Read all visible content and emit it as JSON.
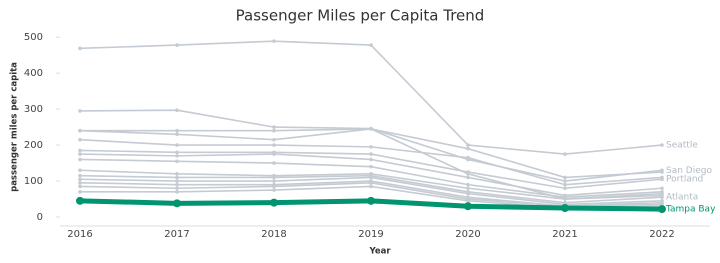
{
  "chart_data": {
    "type": "line",
    "title": "Passenger Miles per Capita Trend",
    "x_label": "Year",
    "y_label": "passenger miles per capita",
    "categories": [
      "2016",
      "2017",
      "2018",
      "2019",
      "2020",
      "2021",
      "2022"
    ],
    "ylim": [
      -25,
      520
    ],
    "yticks": [
      0,
      100,
      200,
      300,
      400,
      500
    ],
    "grid": false,
    "series": [
      {
        "name": "Seattle",
        "color": "#c5cbd3",
        "values": [
          469,
          478,
          489,
          478,
          200,
          175,
          200
        ]
      },
      {
        "name": "San Diego",
        "color": "#c5cbd3",
        "values": [
          295,
          297,
          250,
          246,
          160,
          100,
          130
        ]
      },
      {
        "color": "#c5cbd3",
        "values": [
          240,
          240,
          240,
          245,
          120,
          50,
          60
        ]
      },
      {
        "color": "#c5cbd3",
        "values": [
          240,
          230,
          215,
          245,
          190,
          110,
          125
        ]
      },
      {
        "color": "#c5cbd3",
        "values": [
          215,
          200,
          200,
          195,
          165,
          90,
          110
        ]
      },
      {
        "name": "Portland",
        "color": "#c5cbd3",
        "values": [
          185,
          180,
          180,
          175,
          125,
          80,
          105
        ]
      },
      {
        "color": "#c5cbd3",
        "values": [
          175,
          170,
          175,
          160,
          110,
          60,
          80
        ]
      },
      {
        "color": "#c5cbd3",
        "values": [
          160,
          155,
          150,
          140,
          90,
          55,
          70
        ]
      },
      {
        "color": "#c5cbd3",
        "values": [
          130,
          120,
          115,
          120,
          80,
          50,
          65
        ]
      },
      {
        "name": "Atlanta",
        "color": "#c5cbd3",
        "values": [
          115,
          110,
          110,
          115,
          70,
          40,
          55
        ]
      },
      {
        "color": "#c5cbd3",
        "values": [
          105,
          100,
          100,
          110,
          65,
          35,
          45
        ]
      },
      {
        "color": "#c5cbd3",
        "values": [
          95,
          90,
          90,
          100,
          55,
          30,
          40
        ]
      },
      {
        "color": "#c5cbd3",
        "values": [
          85,
          80,
          85,
          95,
          50,
          30,
          35
        ]
      },
      {
        "color": "#c5cbd3",
        "values": [
          70,
          70,
          75,
          85,
          45,
          25,
          30
        ]
      },
      {
        "name": "Tampa Bay",
        "color": "#00946f",
        "values": [
          45,
          38,
          40,
          45,
          30,
          25,
          22
        ]
      }
    ]
  }
}
